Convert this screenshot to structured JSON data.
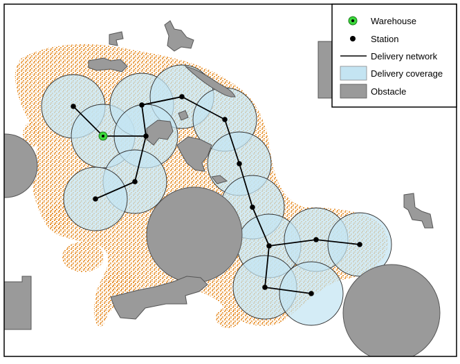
{
  "legend": {
    "warehouse": "Warehouse",
    "station": "Station",
    "network": "Delivery network",
    "coverage": "Delivery coverage",
    "obstacle": "Obstacle"
  },
  "colors": {
    "coverage_fill": "#c4e4f2",
    "coverage_stroke": "#2b2b2b",
    "obstacle_fill": "#9a9a9a",
    "obstacle_stroke": "#555555",
    "urban": "#e8912f",
    "warehouse_fill": "#3cd93c",
    "station": "#000000",
    "network": "#000000"
  }
}
